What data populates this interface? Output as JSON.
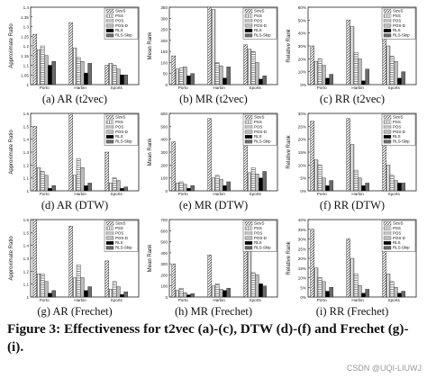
{
  "figure": {
    "caption": "Figure 3: Effectiveness for t2vec (a)-(c), DTW (d)-(f) and Frechet (g)-(i).",
    "watermark": "CSDN @UQI-LIUWJ"
  },
  "legend_items": [
    "SizeS",
    "PSS",
    "POS",
    "POS-D",
    "RLS",
    "RLS-Skip"
  ],
  "colors": {
    "bar_edge": "#222222",
    "solid": "#000000",
    "light": "#9a9a9a",
    "dark": "#555555"
  },
  "chart_data": [
    {
      "id": "a",
      "caption": "(a) AR (t2vec)",
      "type": "bar",
      "ylabel": "Approximate Ratio",
      "categories": [
        "Porto",
        "Harbin",
        "Sports"
      ],
      "ylim": [
        1.0,
        1.4
      ],
      "yticks": [
        "1.4",
        "1.35",
        "1.3",
        "1.25",
        "1.2",
        "1.15",
        "1.1",
        "1.05",
        "1"
      ],
      "legend_position": "top-right",
      "series": [
        {
          "name": "SizeS",
          "values": [
            1.26,
            1.32,
            1.1
          ]
        },
        {
          "name": "PSS",
          "values": [
            1.18,
            1.19,
            1.11
          ]
        },
        {
          "name": "POS",
          "values": [
            1.2,
            1.14,
            1.1
          ]
        },
        {
          "name": "POS-D",
          "values": [
            1.15,
            1.12,
            1.08
          ]
        },
        {
          "name": "RLS",
          "values": [
            1.1,
            1.06,
            1.05
          ]
        },
        {
          "name": "RLS-Skip",
          "values": [
            1.12,
            1.11,
            1.05
          ]
        }
      ]
    },
    {
      "id": "b",
      "caption": "(b) MR (t2vec)",
      "type": "bar",
      "ylabel": "Mean Rank",
      "categories": [
        "Porto",
        "Harbin",
        "Sports"
      ],
      "ylim": [
        0,
        350
      ],
      "yticks": [
        "350",
        "300",
        "250",
        "200",
        "150",
        "100",
        "50",
        "0"
      ],
      "legend_position": "top-right",
      "series": [
        {
          "name": "SizeS",
          "values": [
            130,
            350,
            180
          ]
        },
        {
          "name": "PSS",
          "values": [
            70,
            340,
            160
          ]
        },
        {
          "name": "POS",
          "values": [
            75,
            100,
            150
          ]
        },
        {
          "name": "POS-D",
          "values": [
            80,
            85,
            100
          ]
        },
        {
          "name": "RLS",
          "values": [
            40,
            30,
            25
          ]
        },
        {
          "name": "RLS-Skip",
          "values": [
            50,
            80,
            40
          ]
        }
      ]
    },
    {
      "id": "c",
      "caption": "(c) RR (t2vec)",
      "type": "bar",
      "ylabel": "Relative Rank",
      "categories": [
        "Porto",
        "Harbin",
        "Sports"
      ],
      "ylim": [
        0,
        60
      ],
      "yticks": [
        "60%",
        "50%",
        "40%",
        "30%",
        "20%",
        "10%",
        "0%"
      ],
      "legend_position": "top-right",
      "series": [
        {
          "name": "SizeS",
          "values": [
            30,
            50,
            40
          ]
        },
        {
          "name": "PSS",
          "values": [
            18,
            45,
            30
          ]
        },
        {
          "name": "POS",
          "values": [
            20,
            25,
            22
          ]
        },
        {
          "name": "POS-D",
          "values": [
            15,
            20,
            18
          ]
        },
        {
          "name": "RLS",
          "values": [
            5,
            3,
            5
          ]
        },
        {
          "name": "RLS-Skip",
          "values": [
            8,
            12,
            10
          ]
        }
      ]
    },
    {
      "id": "d",
      "caption": "(d) AR (DTW)",
      "type": "bar",
      "ylabel": "Approximate Ratio",
      "categories": [
        "Porto",
        "Harbin",
        "Sports"
      ],
      "ylim": [
        1.0,
        1.6
      ],
      "yticks": [
        "1.6",
        "1.5",
        "1.4",
        "1.3",
        "1.2",
        "1.1",
        "1"
      ],
      "legend_position": "top-right",
      "series": [
        {
          "name": "SizeS",
          "values": [
            1.5,
            1.6,
            1.3
          ]
        },
        {
          "name": "PSS",
          "values": [
            1.18,
            1.12,
            1.06
          ]
        },
        {
          "name": "POS",
          "values": [
            1.15,
            1.25,
            1.1
          ]
        },
        {
          "name": "POS-D",
          "values": [
            1.12,
            1.18,
            1.08
          ]
        },
        {
          "name": "RLS",
          "values": [
            1.02,
            1.04,
            1.02
          ]
        },
        {
          "name": "RLS-Skip",
          "values": [
            1.04,
            1.06,
            1.03
          ]
        }
      ]
    },
    {
      "id": "e",
      "caption": "(e) MR (DTW)",
      "type": "bar",
      "ylabel": "Mean Rank",
      "categories": [
        "Porto",
        "Harbin",
        "Sports"
      ],
      "ylim": [
        0,
        600
      ],
      "yticks": [
        "600",
        "500",
        "400",
        "300",
        "200",
        "100",
        "0"
      ],
      "legend_position": "top-right",
      "series": [
        {
          "name": "SizeS",
          "values": [
            380,
            560,
            600
          ]
        },
        {
          "name": "PSS",
          "values": [
            60,
            100,
            140
          ]
        },
        {
          "name": "POS",
          "values": [
            70,
            120,
            180
          ]
        },
        {
          "name": "POS-D",
          "values": [
            50,
            90,
            130
          ]
        },
        {
          "name": "RLS",
          "values": [
            20,
            40,
            100
          ]
        },
        {
          "name": "RLS-Skip",
          "values": [
            40,
            70,
            150
          ]
        }
      ]
    },
    {
      "id": "f",
      "caption": "(f) RR (DTW)",
      "type": "bar",
      "ylabel": "Relative Rank",
      "categories": [
        "Porto",
        "Harbin",
        "Sports"
      ],
      "ylim": [
        0,
        30
      ],
      "yticks": [
        "30%",
        "25%",
        "20%",
        "15%",
        "10%",
        "5%",
        "0%"
      ],
      "legend_position": "top-right",
      "series": [
        {
          "name": "SizeS",
          "values": [
            27,
            28,
            28
          ]
        },
        {
          "name": "PSS",
          "values": [
            12,
            18,
            10
          ]
        },
        {
          "name": "POS",
          "values": [
            10,
            8,
            6
          ]
        },
        {
          "name": "POS-D",
          "values": [
            5,
            5,
            4
          ]
        },
        {
          "name": "RLS",
          "values": [
            2,
            2,
            3
          ]
        },
        {
          "name": "RLS-Skip",
          "values": [
            4,
            3,
            3
          ]
        }
      ]
    },
    {
      "id": "g",
      "caption": "(g) AR (Frechet)",
      "type": "bar",
      "ylabel": "Approximate Ratio",
      "categories": [
        "Porto",
        "Harbin",
        "Sports"
      ],
      "ylim": [
        1.0,
        1.6
      ],
      "yticks": [
        "1.6",
        "1.5",
        "1.4",
        "1.3",
        "1.2",
        "1.1",
        "1"
      ],
      "legend_position": "top-right",
      "series": [
        {
          "name": "SizeS",
          "values": [
            1.6,
            1.55,
            1.28
          ]
        },
        {
          "name": "PSS",
          "values": [
            1.18,
            1.15,
            1.06
          ]
        },
        {
          "name": "POS",
          "values": [
            1.18,
            1.25,
            1.12
          ]
        },
        {
          "name": "POS-D",
          "values": [
            1.12,
            1.15,
            1.08
          ]
        },
        {
          "name": "RLS",
          "values": [
            1.03,
            1.05,
            1.02
          ]
        },
        {
          "name": "RLS-Skip",
          "values": [
            1.05,
            1.08,
            1.04
          ]
        }
      ]
    },
    {
      "id": "h",
      "caption": "(h) MR (Frechet)",
      "type": "bar",
      "ylabel": "Mean Rank",
      "categories": [
        "Porto",
        "Harbin",
        "Sports"
      ],
      "ylim": [
        0,
        700
      ],
      "yticks": [
        "700",
        "600",
        "500",
        "400",
        "300",
        "200",
        "100",
        "0"
      ],
      "legend_position": "top-right",
      "series": [
        {
          "name": "SizeS",
          "values": [
            300,
            380,
            680
          ]
        },
        {
          "name": "PSS",
          "values": [
            60,
            100,
            580
          ]
        },
        {
          "name": "POS",
          "values": [
            80,
            120,
            220
          ]
        },
        {
          "name": "POS-D",
          "values": [
            40,
            70,
            200
          ]
        },
        {
          "name": "RLS",
          "values": [
            20,
            60,
            120
          ]
        },
        {
          "name": "RLS-Skip",
          "values": [
            30,
            80,
            100
          ]
        }
      ]
    },
    {
      "id": "i",
      "caption": "(i) RR (Frechet)",
      "type": "bar",
      "ylabel": "Relative Rank",
      "categories": [
        "Porto",
        "Harbin",
        "Sports"
      ],
      "ylim": [
        0,
        40
      ],
      "yticks": [
        "40%",
        "35%",
        "30%",
        "25%",
        "20%",
        "15%",
        "10%",
        "5%",
        "0%"
      ],
      "legend_position": "top-right",
      "series": [
        {
          "name": "SizeS",
          "values": [
            35,
            30,
            28
          ]
        },
        {
          "name": "PSS",
          "values": [
            15,
            20,
            12
          ]
        },
        {
          "name": "POS",
          "values": [
            10,
            12,
            8
          ]
        },
        {
          "name": "POS-D",
          "values": [
            8,
            6,
            5
          ]
        },
        {
          "name": "RLS",
          "values": [
            3,
            2,
            2
          ]
        },
        {
          "name": "RLS-Skip",
          "values": [
            5,
            4,
            3
          ]
        }
      ]
    }
  ]
}
